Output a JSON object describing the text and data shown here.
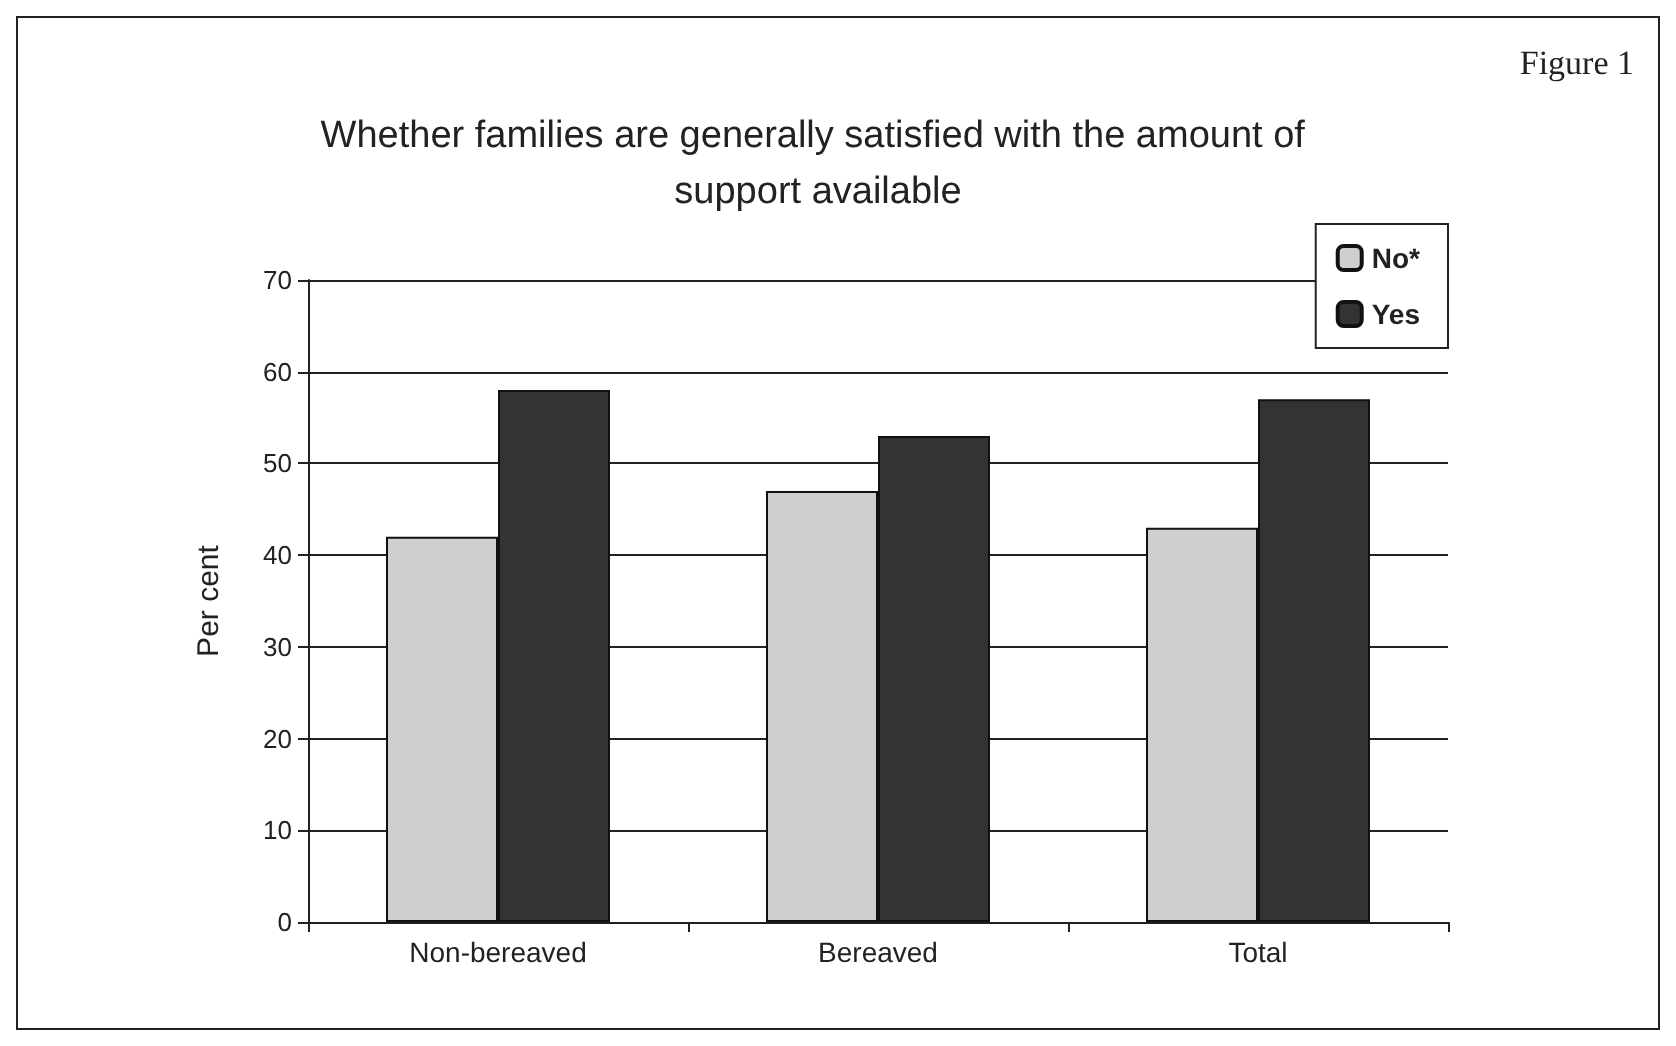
{
  "chart_data": {
    "type": "bar",
    "title": "Whether families are generally satisfied with the amount of support available",
    "ylabel": "Per cent",
    "annotations": [
      "Figure 1"
    ],
    "categories": [
      "Non-bereaved",
      "Bereaved",
      "Total"
    ],
    "series": [
      {
        "name": "No*",
        "color": "#cfcfcf",
        "values": [
          42,
          47,
          43
        ]
      },
      {
        "name": "Yes",
        "color": "#333333",
        "values": [
          58,
          53,
          57
        ]
      }
    ],
    "ylim": [
      0,
      70
    ],
    "yticks": [
      0,
      10,
      20,
      30,
      40,
      50,
      60,
      70
    ],
    "grid": "y",
    "legend": "top right"
  }
}
